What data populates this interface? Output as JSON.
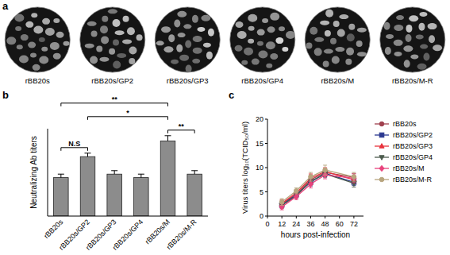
{
  "panel_a": {
    "label": "a",
    "images": [
      "rBB20s",
      "rBB20s/GP2",
      "rBB20s/GP3",
      "rBB20s/GP4",
      "rBB20s/M",
      "rBB20s/M-R"
    ]
  },
  "chart_data": [
    {
      "type": "bar",
      "panel_label": "b",
      "y_label": "Neutralizing Ab titers",
      "categories": [
        "rBB20s",
        "rBB20s/GP2",
        "rBB20s/GP3",
        "rBB20s/GP4",
        "rBB20s/M",
        "rBB20s/M-R"
      ],
      "values": [
        22,
        34,
        24,
        22,
        43,
        24
      ],
      "errors": [
        2,
        2,
        2,
        2,
        3,
        2
      ],
      "color": "#8c8c8c",
      "ylim": [
        0,
        50
      ],
      "tick_labels": "x",
      "annotations": [
        {
          "between": [
            "rBB20s",
            "rBB20s/GP2"
          ],
          "label": "N.S"
        },
        {
          "between": [
            "rBB20s/M",
            "rBB20s/M-R"
          ],
          "label": "**"
        },
        {
          "between": [
            "rBB20s/GP2",
            "rBB20s/M"
          ],
          "label": "*"
        },
        {
          "between": [
            "rBB20s",
            "rBB20s/M"
          ],
          "label": "**"
        }
      ]
    },
    {
      "type": "line",
      "panel_label": "c",
      "x_label": "hours post-infection",
      "y_label": "Virus titers log₁₀(TCID₅₀/ml)",
      "x": [
        12,
        24,
        36,
        48,
        72
      ],
      "xlim": [
        0,
        80
      ],
      "xticks": [
        0,
        12,
        24,
        36,
        48,
        60,
        72
      ],
      "ylim": [
        0,
        20
      ],
      "yticks": [
        0,
        5,
        10,
        15,
        20
      ],
      "legend": "right",
      "series": [
        {
          "name": "rBB20s",
          "color": "#a0404e",
          "marker": "circle",
          "values": [
            2.5,
            4.5,
            7.5,
            9.0,
            8.0
          ],
          "errors": [
            0.8,
            0.6,
            1.0,
            0.8,
            0.8
          ]
        },
        {
          "name": "rBB20s/GP2",
          "color": "#2b3990",
          "marker": "square",
          "values": [
            2.3,
            4.4,
            7.0,
            8.8,
            7.0
          ],
          "errors": [
            0.6,
            0.5,
            0.8,
            0.7,
            0.7
          ]
        },
        {
          "name": "rBB20s/GP3",
          "color": "#e8323c",
          "marker": "triangle",
          "values": [
            2.6,
            4.8,
            7.8,
            9.2,
            7.5
          ],
          "errors": [
            0.7,
            0.6,
            0.9,
            0.8,
            0.8
          ]
        },
        {
          "name": "rBB20s/GP4",
          "color": "#4d5b4e",
          "marker": "triangle-down",
          "values": [
            2.2,
            4.2,
            7.2,
            8.7,
            6.8
          ],
          "errors": [
            0.6,
            0.5,
            0.8,
            0.7,
            0.8
          ]
        },
        {
          "name": "rBB20s/M",
          "color": "#e8427c",
          "marker": "diamond",
          "values": [
            1.9,
            4.0,
            6.6,
            8.5,
            7.8
          ],
          "errors": [
            0.6,
            0.6,
            0.8,
            0.8,
            0.9
          ]
        },
        {
          "name": "rBB20s/M-R",
          "color": "#b8a57e",
          "marker": "circle",
          "values": [
            2.9,
            5.2,
            8.1,
            9.5,
            8.1
          ],
          "errors": [
            0.7,
            0.6,
            0.9,
            1.0,
            0.9
          ]
        }
      ]
    }
  ]
}
